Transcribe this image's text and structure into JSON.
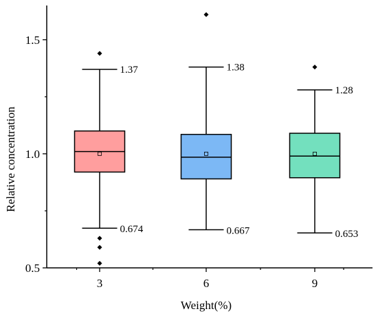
{
  "chart_data": {
    "type": "box",
    "xlabel": "Weight(%)",
    "ylabel": "Relative concentration",
    "ylim": [
      0.5,
      1.65
    ],
    "yticks": [
      "0.5",
      "1.0",
      "1.5"
    ],
    "ytick_values": [
      0.5,
      1.0,
      1.5
    ],
    "categories": [
      "3",
      "6",
      "9"
    ],
    "series": [
      {
        "category": "3",
        "color": "#FF9E9E",
        "whisker_low": 0.674,
        "q1": 0.92,
        "median": 1.01,
        "q3": 1.1,
        "whisker_high": 1.37,
        "mean": 1.0,
        "outliers": [
          1.44,
          0.63,
          0.59,
          0.52
        ],
        "whisker_high_label": "1.37",
        "whisker_low_label": "0.674"
      },
      {
        "category": "6",
        "color": "#7CB8F5",
        "whisker_low": 0.667,
        "q1": 0.89,
        "median": 0.985,
        "q3": 1.085,
        "whisker_high": 1.38,
        "mean": 1.0,
        "outliers": [
          1.61
        ],
        "whisker_high_label": "1.38",
        "whisker_low_label": "0.667"
      },
      {
        "category": "9",
        "color": "#73E0BE",
        "whisker_low": 0.653,
        "q1": 0.895,
        "median": 0.99,
        "q3": 1.09,
        "whisker_high": 1.28,
        "mean": 1.0,
        "outliers": [
          1.38
        ],
        "whisker_high_label": "1.28",
        "whisker_low_label": "0.653"
      }
    ]
  }
}
